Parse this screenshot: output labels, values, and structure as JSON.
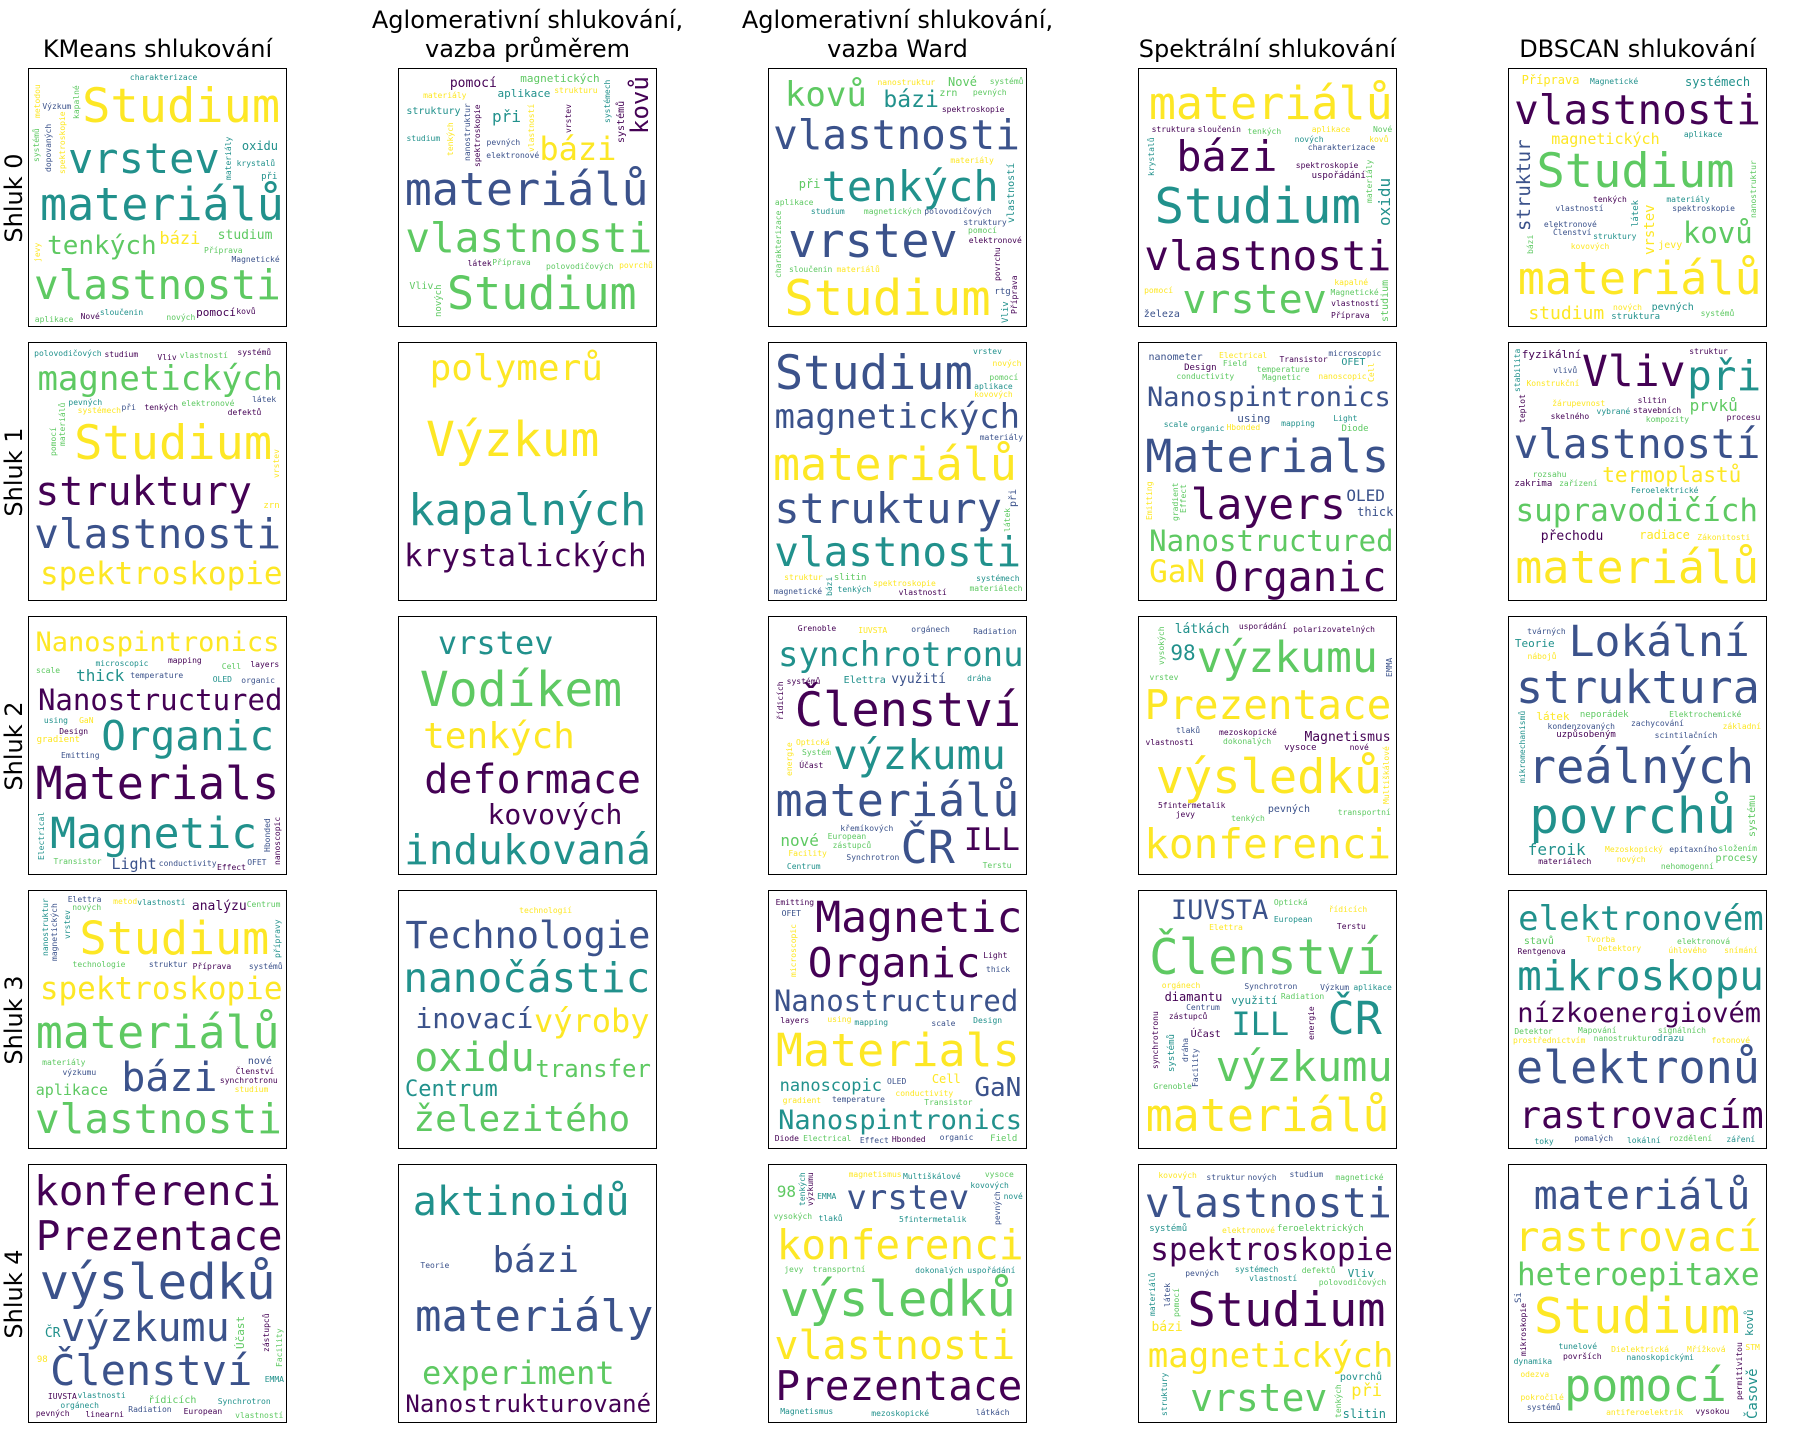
{
  "column_titles": [
    "KMeans shlukování",
    "Aglomerativní shlukování,\nvazba průměrem",
    "Aglomerativní shlukování,\nvazba Ward",
    "Spektrální shlukování",
    "DBSCAN shlukování"
  ],
  "row_labels": [
    "Shluk 0",
    "Shluk 1",
    "Shluk 2",
    "Shluk 3",
    "Shluk 4"
  ],
  "colormap": "viridis",
  "colors": [
    "#440154",
    "#3b528b",
    "#21918c",
    "#5ec962",
    "#fde725"
  ],
  "chart_data": {
    "type": "wordcloud-grid",
    "panels": [
      [
        [
          "vlastnosti",
          "Studium",
          "materiálů",
          "vrstev",
          "bázi",
          "aplikace",
          "kovů",
          "tenkých",
          "charakterizace",
          "materiály",
          "Nové",
          "sloučenin",
          "spektroskopie",
          "nových",
          "krystalů",
          "Výzkum",
          "dopovaných",
          "nanostruktur",
          "Příprava",
          "metodou",
          "systémů",
          "studium",
          "oxidu",
          "jevy",
          "pomocí",
          "kapalné",
          "Magnetické",
          "vlastností",
          "při"
        ],
        [
          "materiálů",
          "vlastnosti",
          "Studium",
          "spektroskopie",
          "magnetických",
          "tenkých",
          "aplikace",
          "vrstev",
          "bázi",
          "struktury",
          "pomocí",
          "systémech",
          "studium",
          "kovů",
          "vlastností",
          "nanostruktur",
          "materiály",
          "látek",
          "pevných",
          "při",
          "povrchů",
          "Příprava",
          "polovodičových",
          "elektronové",
          "strukturu",
          "systémů",
          "Vliv",
          "magnetické",
          "nových"
        ],
        [
          "Studium",
          "vrstev",
          "vlastnosti",
          "tenkých",
          "bázi",
          "materiálů",
          "spektroskopie",
          "kovů",
          "pomocí",
          "magnetických",
          "nanostruktur",
          "aplikace",
          "povrchu",
          "Příprava",
          "materiály",
          "charakterizace",
          "sloučenin",
          "pevných",
          "studium",
          "systémů",
          "elektronové",
          "polovodičových",
          "při",
          "Nové",
          "struktury",
          "vlastností",
          "zrn",
          "Vliv",
          "rtg"
        ],
        [
          "Studium",
          "materiálů",
          "vlastnosti",
          "bázi",
          "vrstev",
          "spektroskopie",
          "charakterizace",
          "sloučenin",
          "kovů",
          "aplikace",
          "Nové",
          "tenkých",
          "vlastností",
          "nových",
          "Příprava",
          "pomocí",
          "materiály",
          "kapalné",
          "oxidu",
          "Magnetické",
          "nanostruktur",
          "krystalů",
          "struktura",
          "dopovaných",
          "studium",
          "železa",
          "magnetismus",
          "uspořádání"
        ],
        [
          "vlastnosti",
          "Studium",
          "materiálů",
          "vrstev",
          "magnetických",
          "bázi",
          "struktury",
          "tenkých",
          "vlastností",
          "aplikace",
          "kovů",
          "spektroskopie",
          "systémů",
          "nových",
          "nanostruktur",
          "systémech",
          "struktur",
          "studium",
          "Magnetické",
          "elektronové",
          "kovových",
          "polovodičových",
          "Příprava",
          "látek",
          "materiály",
          "pevných",
          "jevy",
          "Členství",
          "struktura"
        ]
      ],
      [
        [
          "vlastnosti",
          "Studium",
          "magnetických",
          "spektroskopie",
          "struktury",
          "systémech",
          "materiálů",
          "elektronové",
          "vrstev",
          "pomocí",
          "tenkých",
          "studium",
          "vlastností",
          "polovodičových",
          "pevných",
          "látek",
          "při",
          "systémů",
          "defektů",
          "struktura",
          "povrchů",
          "kvantových",
          "kovových",
          "Vliv",
          "feroelektrické",
          "magnetické",
          "materiálech",
          "zrn",
          "strukturu"
        ],
        [
          "Výzkum",
          "kapalných",
          "krystalických",
          "polymerů"
        ],
        [
          "vlastnosti",
          "Studium",
          "materiálů",
          "struktury",
          "magnetických",
          "spektroskopie",
          "tenkých",
          "vlastností",
          "systémech",
          "vrstev",
          "materiálech",
          "látek",
          "struktur",
          "pomocí",
          "bázi",
          "studium",
          "materiály",
          "magnetické",
          "nových",
          "kovových",
          "defektů",
          "aplikace",
          "polovodičových",
          "Magnetické",
          "nanostruktur",
          "při",
          "feroelektrické",
          "slitin",
          "struktura"
        ],
        [
          "Materials",
          "Nanostructured",
          "Nanospintronics",
          "layers",
          "Organic",
          "Magnetic",
          "Design",
          "Electrical",
          "Cell",
          "GaN",
          "conductivity",
          "mapping",
          "gradient",
          "temperature",
          "scale",
          "Transistor",
          "Hbonded",
          "Emitting",
          "Light",
          "OLED",
          "microscopic",
          "nanoscopic",
          "organic",
          "thick",
          "Effect",
          "using",
          "OFET",
          "nanometer",
          "Diode",
          "Field"
        ],
        [
          "materiálů",
          "supravodičích",
          "vlastností",
          "Vliv",
          "při",
          "termoplastů",
          "prvků",
          "Konstrukční",
          "stabilita",
          "teplot",
          "stavebních",
          "rozsahu",
          "skelného",
          "Zákonitosti",
          "přechodu",
          "dislokačních",
          "žárupevnost",
          "vlivů",
          "zařízení",
          "struktur",
          "slitin",
          "Feroelektrické",
          "kompozity",
          "radiace",
          "fyzikální",
          "perspektivních",
          "procesu",
          "vybrané",
          "Magnetismus",
          "zakrima"
        ]
      ],
      [
        [
          "Materials",
          "Nanostructured",
          "Nanospintronics",
          "Magnetic",
          "Organic",
          "layers",
          "Design",
          "Cell",
          "GaN",
          "conductivity",
          "mapping",
          "gradient",
          "temperature",
          "Electrical",
          "nanoscopic",
          "microscopic",
          "organic",
          "Transistor",
          "scale",
          "thick",
          "Light",
          "Emitting",
          "Hbonded",
          "OFET",
          "OLED",
          "Effect",
          "Diode",
          "nanometer",
          "using",
          "Field"
        ],
        [
          "Vodíkem",
          "indukovaná",
          "deformace",
          "tenkých",
          "vrstev",
          "kovových"
        ],
        [
          "materiálů",
          "Členství",
          "ČR",
          "synchrotronu",
          "výzkumu",
          "Elettra",
          "Centrum",
          "European",
          "Facility",
          "ILL",
          "IUVSTA",
          "řídicích",
          "Radiation",
          "Účast",
          "Synchrotron",
          "energie",
          "zástupců",
          "Grenoble",
          "Terstu",
          "nové",
          "orgánech",
          "dráha",
          "využití",
          "křemíkových",
          "Optická",
          "aplikace",
          "nanomateriálů",
          "systémů",
          "Systém",
          "Instrumentation"
        ],
        [
          "Prezentace",
          "výsledků",
          "konferenci",
          "výzkumu",
          "vlastnosti",
          "pevných",
          "tenkých",
          "vrstev",
          "EMMA",
          "Magnetismus",
          "transportní",
          "usporádání",
          "tlaků",
          "mezoskopické",
          "Multiškálové",
          "98",
          "5fintermetalik",
          "vysokých",
          "nové",
          "polarizovatelných",
          "dokonalých",
          "jevy",
          "látkách",
          "Krystalizace",
          "magnetismus",
          "nedokonalých",
          "systémech",
          "Nízkodimenzionální",
          "kovových",
          "vysoce"
        ],
        [
          "povrchů",
          "reálných",
          "struktura",
          "Lokální",
          "procesy",
          "uzpůsobeným",
          "neporádek",
          "nábojů",
          "zachycování",
          "Mezoskopický",
          "scintilačních",
          "nových",
          "materiálech",
          "tvárných",
          "mikromechanismů",
          "složením",
          "kondenzovaných",
          "základní",
          "nehomogenní",
          "feroik",
          "epitaxního",
          "mechanismy",
          "Elektrochemické",
          "vlastností",
          "Teorie",
          "látek",
          "systému",
          "vysoce",
          "inelastických",
          "vlastnosti"
        ]
      ],
      [
        [
          "materiálů",
          "vlastnosti",
          "Studium",
          "spektroskopie",
          "bázi",
          "vrstev",
          "aplikace",
          "Centrum",
          "Členství",
          "nanostruktur",
          "Příprava",
          "vlastností",
          "nových",
          "studium",
          "materiály",
          "metod",
          "struktur",
          "systémů",
          "přípravy",
          "technologie",
          "magnetických",
          "analýzu",
          "výzkumu",
          "procesů",
          "synchrotronu",
          "nové",
          "Elettra",
          "nanomateriálů",
          "struktury"
        ],
        [
          "Technologie",
          "nanočástic",
          "oxidu",
          "železitého",
          "výroby",
          "inovací",
          "transfer",
          "Centrum",
          "technologií"
        ],
        [
          "Materials",
          "Nanostructured",
          "Nanospintronics",
          "Magnetic",
          "Organic",
          "layers",
          "Cell",
          "Design",
          "conductivity",
          "gradient",
          "nanoscopic",
          "mapping",
          "GaN",
          "Electrical",
          "temperature",
          "microscopic",
          "Transistor",
          "scale",
          "thick",
          "organic",
          "Emitting",
          "Light",
          "Hbonded",
          "OFET",
          "OLED",
          "Effect",
          "Diode",
          "nanometer",
          "using",
          "Field"
        ],
        [
          "Členství",
          "materiálů",
          "ČR",
          "výzkumu",
          "synchrotronu",
          "Radiation",
          "European",
          "Facility",
          "ILL",
          "Elettra",
          "Účast",
          "IUVSTA",
          "Centrum",
          "Synchrotron",
          "řídicích",
          "zástupců",
          "Grenoble",
          "orgánech",
          "Optická",
          "energie",
          "dráha",
          "Terstu",
          "diamantu",
          "systémů",
          "využití",
          "aplikace",
          "Výzkum",
          "nanostruktur",
          "Charakterizace"
        ],
        [
          "elektronů",
          "mikroskopu",
          "nízkoenergiovém",
          "rastrovacím",
          "elektronovém",
          "úhlového",
          "signálních",
          "rozdělení",
          "velmi",
          "pomalých",
          "nanostruktur",
          "Detektory",
          "toky",
          "elektronová",
          "fotonové",
          "Rentgenova",
          "záření",
          "Tvorba",
          "Detektor",
          "při",
          "vysoké",
          "obrazu",
          "Mapování",
          "lokální",
          "snímání",
          "prostřednictvím",
          "stavů",
          "hustoty",
          "odrazu",
          "pomocí"
        ]
      ],
      [
        [
          "výsledků",
          "Prezentace",
          "konferenci",
          "Členství",
          "výzkumu",
          "ČR",
          "IUVSTA",
          "Účast",
          "zástupců",
          "orgánech",
          "řídicích",
          "Synchrotron",
          "Facility",
          "European",
          "Radiation",
          "vrstev",
          "vlastnosti",
          "pevných",
          "tenkých",
          "vlastností",
          "Magneticky",
          "EMMA",
          "dichroismus",
          "mezinárodní",
          "rentgenového",
          "absorpčních",
          "záření",
          "linearni",
          "98"
        ],
        [
          "Nanostrukturované",
          "materiály",
          "aktinoidů",
          "bázi",
          "experiment",
          "Teorie"
        ],
        [
          "výsledků",
          "Prezentace",
          "konferenci",
          "výzkumu",
          "vlastnosti",
          "tenkých",
          "pevných",
          "vrstev",
          "EMMA",
          "Magnetismus",
          "transportní",
          "tlaků",
          "mezoskopické",
          "Multiškálové",
          "5fintermetalik",
          "vysokých",
          "polarizovatelných",
          "magnetismus",
          "nové",
          "98",
          "uspořádání",
          "látkách",
          "dokonalých",
          "jevy",
          "Krystalizace",
          "nedokonalých",
          "kovových",
          "vysoce",
          "Nízkodimenzionálních"
        ],
        [
          "vlastnosti",
          "Studium",
          "spektroskopie",
          "magnetických",
          "struktury",
          "vrstev",
          "tenkých",
          "materiálů",
          "vlastností",
          "studium",
          "systémech",
          "elektronové",
          "pomocí",
          "struktur",
          "při",
          "látek",
          "pevných",
          "polovodičových",
          "magnetické",
          "systémů",
          "kovových",
          "bázi",
          "slitin",
          "defektů",
          "Vliv",
          "povrchů",
          "materiály",
          "feroelektrických",
          "nových"
        ],
        [
          "Studium",
          "rastrovací",
          "pomocí",
          "mikroskopie",
          "materiálů",
          "heteroepitaxe",
          "tunelové",
          "površích",
          "Dielektrická",
          "systémů",
          "odezva",
          "kovů",
          "STM",
          "vysokou",
          "antiferoelektrik",
          "terahertzová",
          "dynamika",
          "Mřížková",
          "rozlišená",
          "feroelektrik",
          "Časově",
          "nehomogenitami",
          "permitivitou",
          "nanoskopickými",
          "kompozitních",
          "neuspořádaných",
          "pokročilé",
          "technologie",
          "Si"
        ]
      ]
    ]
  }
}
